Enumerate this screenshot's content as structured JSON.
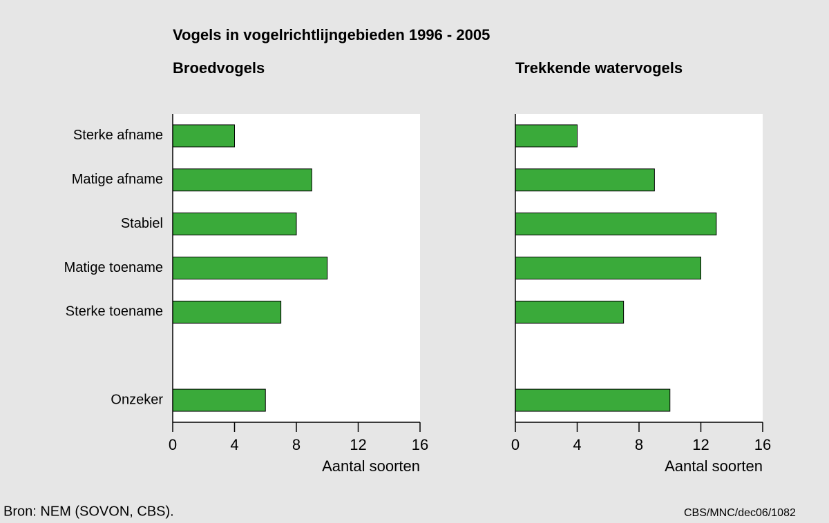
{
  "title": "Vogels in vogelrichtlijngebieden 1996 - 2005",
  "source": "Bron: NEM (SOVON, CBS).",
  "code": "CBS/MNC/dec06/1082",
  "chart_data": [
    {
      "type": "barh",
      "title": "Broedvogels",
      "categories": [
        "Sterke afname",
        "Matige afname",
        "Stabiel",
        "Matige toename",
        "Sterke toename",
        null,
        "Onzeker"
      ],
      "values": [
        4,
        9,
        8,
        10,
        7,
        null,
        6
      ],
      "color": "#3aaa3a",
      "xlim": [
        0,
        16
      ],
      "xticks": [
        0,
        4,
        8,
        12,
        16
      ],
      "xlabel": "Aantal soorten"
    },
    {
      "type": "barh",
      "title": "Trekkende watervogels",
      "values": [
        4,
        9,
        13,
        12,
        7,
        null,
        10
      ],
      "color": "#3aaa3a",
      "xlim": [
        0,
        16
      ],
      "xticks": [
        0,
        4,
        8,
        12,
        16
      ],
      "xlabel": "Aantal soorten"
    }
  ]
}
